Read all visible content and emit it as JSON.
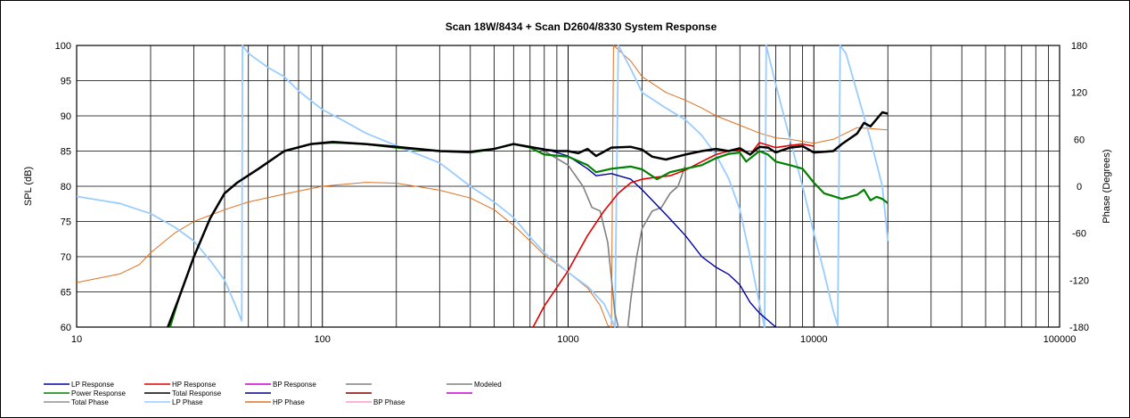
{
  "chart_data": {
    "type": "line",
    "title": "Scan 18W/8434  + Scan D2604/8330      System Response",
    "ylabel": "SPL (dB)",
    "y2label": "Phase (Degrees)",
    "xscale": "log",
    "xlim": [
      10,
      100000
    ],
    "ylim": [
      60,
      100
    ],
    "y2lim": [
      -180,
      180
    ],
    "grid": true,
    "x_tick_labels": [
      "10",
      "100",
      "1000",
      "10000",
      "100000"
    ],
    "y_tick_labels": [
      "60",
      "65",
      "70",
      "75",
      "80",
      "85",
      "90",
      "95",
      "100"
    ],
    "y2_tick_labels": [
      "-180",
      "-120",
      "-60",
      "0",
      "60",
      "120",
      "180"
    ],
    "legend_position": "bottom",
    "legend": [
      {
        "label": "LP Response",
        "color": "#0000A0"
      },
      {
        "label": "HP Response",
        "color": "#E00000"
      },
      {
        "label": "BP Response",
        "color": "#D000D0"
      },
      {
        "label": "",
        "color": "#808080"
      },
      {
        "label": "Modeled",
        "color": "#808080"
      },
      {
        "label": "Power Response",
        "color": "#008000"
      },
      {
        "label": "Total Response",
        "color": "#000000"
      },
      {
        "label": "",
        "color": "#000080"
      },
      {
        "label": "",
        "color": "#800000"
      },
      {
        "label": "",
        "color": "#D000D0"
      },
      {
        "label": "Total Phase",
        "color": "#909090"
      },
      {
        "label": "LP Phase",
        "color": "#99CCFF"
      },
      {
        "label": "HP Phase",
        "color": "#E07020"
      },
      {
        "label": "BP Phase",
        "color": "#FF99CC"
      }
    ],
    "series": [
      {
        "name": "Total Response",
        "axis": "left",
        "color": "#000000",
        "width": 2.5,
        "points": [
          [
            23.5,
            60
          ],
          [
            26,
            64
          ],
          [
            30,
            70
          ],
          [
            35,
            75.5
          ],
          [
            40,
            79
          ],
          [
            45,
            80.5
          ],
          [
            55,
            82.5
          ],
          [
            70,
            85
          ],
          [
            90,
            86
          ],
          [
            110,
            86.3
          ],
          [
            150,
            86
          ],
          [
            200,
            85.6
          ],
          [
            300,
            85
          ],
          [
            400,
            84.9
          ],
          [
            500,
            85.3
          ],
          [
            600,
            86
          ],
          [
            700,
            85.6
          ],
          [
            800,
            85.2
          ],
          [
            900,
            85
          ],
          [
            1000,
            85
          ],
          [
            1100,
            84.7
          ],
          [
            1200,
            85.3
          ],
          [
            1300,
            84.3
          ],
          [
            1500,
            85.5
          ],
          [
            1800,
            85.6
          ],
          [
            2000,
            85.2
          ],
          [
            2200,
            84.2
          ],
          [
            2500,
            83.8
          ],
          [
            3000,
            84.5
          ],
          [
            3500,
            85
          ],
          [
            4000,
            85.3
          ],
          [
            4500,
            85
          ],
          [
            5000,
            85.4
          ],
          [
            5500,
            84.5
          ],
          [
            6000,
            85.6
          ],
          [
            6500,
            85.5
          ],
          [
            7000,
            84.8
          ],
          [
            8000,
            85.5
          ],
          [
            9000,
            85.7
          ],
          [
            10000,
            84.8
          ],
          [
            12000,
            85
          ],
          [
            13000,
            86
          ],
          [
            15000,
            87.5
          ],
          [
            16000,
            89
          ],
          [
            17000,
            88.5
          ],
          [
            19000,
            90.5
          ],
          [
            20000,
            90.3
          ]
        ]
      },
      {
        "name": "Power Response",
        "axis": "left",
        "color": "#008000",
        "width": 2.2,
        "points": [
          [
            24,
            60
          ],
          [
            26,
            64
          ],
          [
            30,
            70
          ],
          [
            35,
            75.5
          ],
          [
            40,
            79
          ],
          [
            45,
            80.5
          ],
          [
            55,
            82.5
          ],
          [
            70,
            85
          ],
          [
            90,
            86
          ],
          [
            110,
            86.2
          ],
          [
            150,
            86
          ],
          [
            200,
            85.5
          ],
          [
            300,
            85
          ],
          [
            400,
            84.8
          ],
          [
            500,
            85.3
          ],
          [
            600,
            86
          ],
          [
            700,
            85.5
          ],
          [
            800,
            84.5
          ],
          [
            1000,
            84.2
          ],
          [
            1200,
            83
          ],
          [
            1300,
            82
          ],
          [
            1500,
            82.5
          ],
          [
            1800,
            82.8
          ],
          [
            2000,
            82.4
          ],
          [
            2300,
            81
          ],
          [
            2600,
            82
          ],
          [
            3000,
            82.5
          ],
          [
            3500,
            83
          ],
          [
            4000,
            84
          ],
          [
            4500,
            84.6
          ],
          [
            5000,
            84.8
          ],
          [
            5300,
            83.5
          ],
          [
            6000,
            85
          ],
          [
            6500,
            84.5
          ],
          [
            7000,
            83.5
          ],
          [
            8000,
            83
          ],
          [
            9000,
            82.5
          ],
          [
            10000,
            80.5
          ],
          [
            11000,
            79
          ],
          [
            12000,
            78.6
          ],
          [
            13000,
            78.2
          ],
          [
            14000,
            78.5
          ],
          [
            15000,
            78.8
          ],
          [
            16000,
            79.5
          ],
          [
            17000,
            78
          ],
          [
            18000,
            78.5
          ],
          [
            19000,
            78.2
          ],
          [
            20000,
            77.6
          ]
        ]
      },
      {
        "name": "LP Response",
        "axis": "left",
        "color": "#0000A0",
        "width": 1.4,
        "points": [
          [
            600,
            86
          ],
          [
            800,
            85.3
          ],
          [
            1000,
            84.3
          ],
          [
            1200,
            82.5
          ],
          [
            1300,
            81.5
          ],
          [
            1500,
            81.8
          ],
          [
            1800,
            81
          ],
          [
            2000,
            79.5
          ],
          [
            2500,
            76
          ],
          [
            3000,
            73
          ],
          [
            3500,
            70
          ],
          [
            4000,
            68.5
          ],
          [
            4500,
            67.5
          ],
          [
            5000,
            66
          ],
          [
            5500,
            63.5
          ],
          [
            6000,
            62
          ],
          [
            7000,
            60
          ]
        ]
      },
      {
        "name": "HP Response",
        "axis": "left",
        "color": "#E00000",
        "width": 1.6,
        "points": [
          [
            720,
            60
          ],
          [
            800,
            63
          ],
          [
            1000,
            68
          ],
          [
            1200,
            73
          ],
          [
            1400,
            76.5
          ],
          [
            1600,
            79
          ],
          [
            1800,
            80.5
          ],
          [
            2000,
            81
          ],
          [
            2300,
            81.3
          ],
          [
            2600,
            81.5
          ],
          [
            3000,
            82.3
          ],
          [
            3500,
            83.5
          ],
          [
            4000,
            84.5
          ],
          [
            4500,
            85
          ],
          [
            5000,
            85.2
          ],
          [
            5500,
            84.5
          ],
          [
            6000,
            86.2
          ],
          [
            7000,
            85.5
          ],
          [
            8000,
            85.8
          ],
          [
            9000,
            86
          ],
          [
            10000,
            85.7
          ]
        ]
      },
      {
        "name": "Modeled",
        "axis": "left",
        "color": "#808080",
        "width": 1.6,
        "points": [
          [
            800,
            85
          ],
          [
            1000,
            83
          ],
          [
            1150,
            80
          ],
          [
            1250,
            77
          ],
          [
            1350,
            76.5
          ],
          [
            1450,
            72
          ],
          [
            1550,
            62
          ],
          [
            1600,
            60
          ],
          [
            1750,
            60
          ],
          [
            1800,
            64
          ],
          [
            1900,
            70
          ],
          [
            2000,
            74
          ],
          [
            2200,
            76.5
          ],
          [
            2400,
            77
          ],
          [
            2600,
            79
          ],
          [
            2800,
            80
          ],
          [
            3000,
            83
          ]
        ]
      },
      {
        "name": "LP Phase",
        "axis": "right",
        "color": "#99CCFF",
        "width": 1.8,
        "points": [
          [
            10,
            -13
          ],
          [
            15,
            -22
          ],
          [
            20,
            -35
          ],
          [
            25,
            -52
          ],
          [
            30,
            -70
          ],
          [
            35,
            -95
          ],
          [
            40,
            -120
          ],
          [
            44,
            -150
          ],
          [
            47,
            -172
          ],
          [
            47.3,
            180
          ],
          [
            50,
            170
          ],
          [
            60,
            152
          ],
          [
            70,
            140
          ],
          [
            80,
            122
          ],
          [
            100,
            98
          ],
          [
            120,
            85
          ],
          [
            150,
            68
          ],
          [
            200,
            52
          ],
          [
            300,
            30
          ],
          [
            400,
            0
          ],
          [
            500,
            -20
          ],
          [
            600,
            -40
          ],
          [
            700,
            -65
          ],
          [
            800,
            -85
          ],
          [
            1000,
            -110
          ],
          [
            1200,
            -128
          ],
          [
            1400,
            -150
          ],
          [
            1500,
            -170
          ],
          [
            1550,
            -180
          ],
          [
            1600,
            180
          ],
          [
            1800,
            150
          ],
          [
            2000,
            120
          ],
          [
            2500,
            100
          ],
          [
            3000,
            85
          ],
          [
            3500,
            65
          ],
          [
            4000,
            40
          ],
          [
            4500,
            10
          ],
          [
            5000,
            -30
          ],
          [
            5500,
            -90
          ],
          [
            6000,
            -150
          ],
          [
            6300,
            -180
          ],
          [
            6400,
            180
          ],
          [
            7000,
            130
          ],
          [
            8000,
            60
          ],
          [
            9000,
            0
          ],
          [
            10000,
            -60
          ],
          [
            11000,
            -110
          ],
          [
            12000,
            -160
          ],
          [
            12500,
            -178
          ],
          [
            12800,
            180
          ],
          [
            13500,
            170
          ],
          [
            15000,
            120
          ],
          [
            17000,
            60
          ],
          [
            19000,
            0
          ],
          [
            20000,
            -70
          ]
        ]
      },
      {
        "name": "HP Phase",
        "axis": "right",
        "color": "#E07020",
        "width": 1,
        "points": [
          [
            10,
            -123
          ],
          [
            15,
            -112
          ],
          [
            18,
            -100
          ],
          [
            20,
            -85
          ],
          [
            25,
            -60
          ],
          [
            30,
            -45
          ],
          [
            40,
            -30
          ],
          [
            50,
            -20
          ],
          [
            70,
            -10
          ],
          [
            100,
            0
          ],
          [
            150,
            5
          ],
          [
            200,
            4
          ],
          [
            300,
            -5
          ],
          [
            400,
            -15
          ],
          [
            500,
            -30
          ],
          [
            600,
            -50
          ],
          [
            700,
            -70
          ],
          [
            800,
            -88
          ],
          [
            1000,
            -110
          ],
          [
            1200,
            -130
          ],
          [
            1350,
            -152
          ],
          [
            1450,
            -178
          ],
          [
            1500,
            -180
          ],
          [
            1530,
            180
          ],
          [
            1800,
            160
          ],
          [
            2000,
            140
          ],
          [
            2500,
            120
          ],
          [
            3000,
            110
          ],
          [
            3500,
            100
          ],
          [
            4000,
            90
          ],
          [
            5000,
            78
          ],
          [
            6000,
            68
          ],
          [
            7000,
            62
          ],
          [
            8000,
            60
          ],
          [
            10000,
            55
          ],
          [
            12000,
            60
          ],
          [
            15000,
            75
          ],
          [
            20000,
            72
          ]
        ]
      }
    ]
  }
}
